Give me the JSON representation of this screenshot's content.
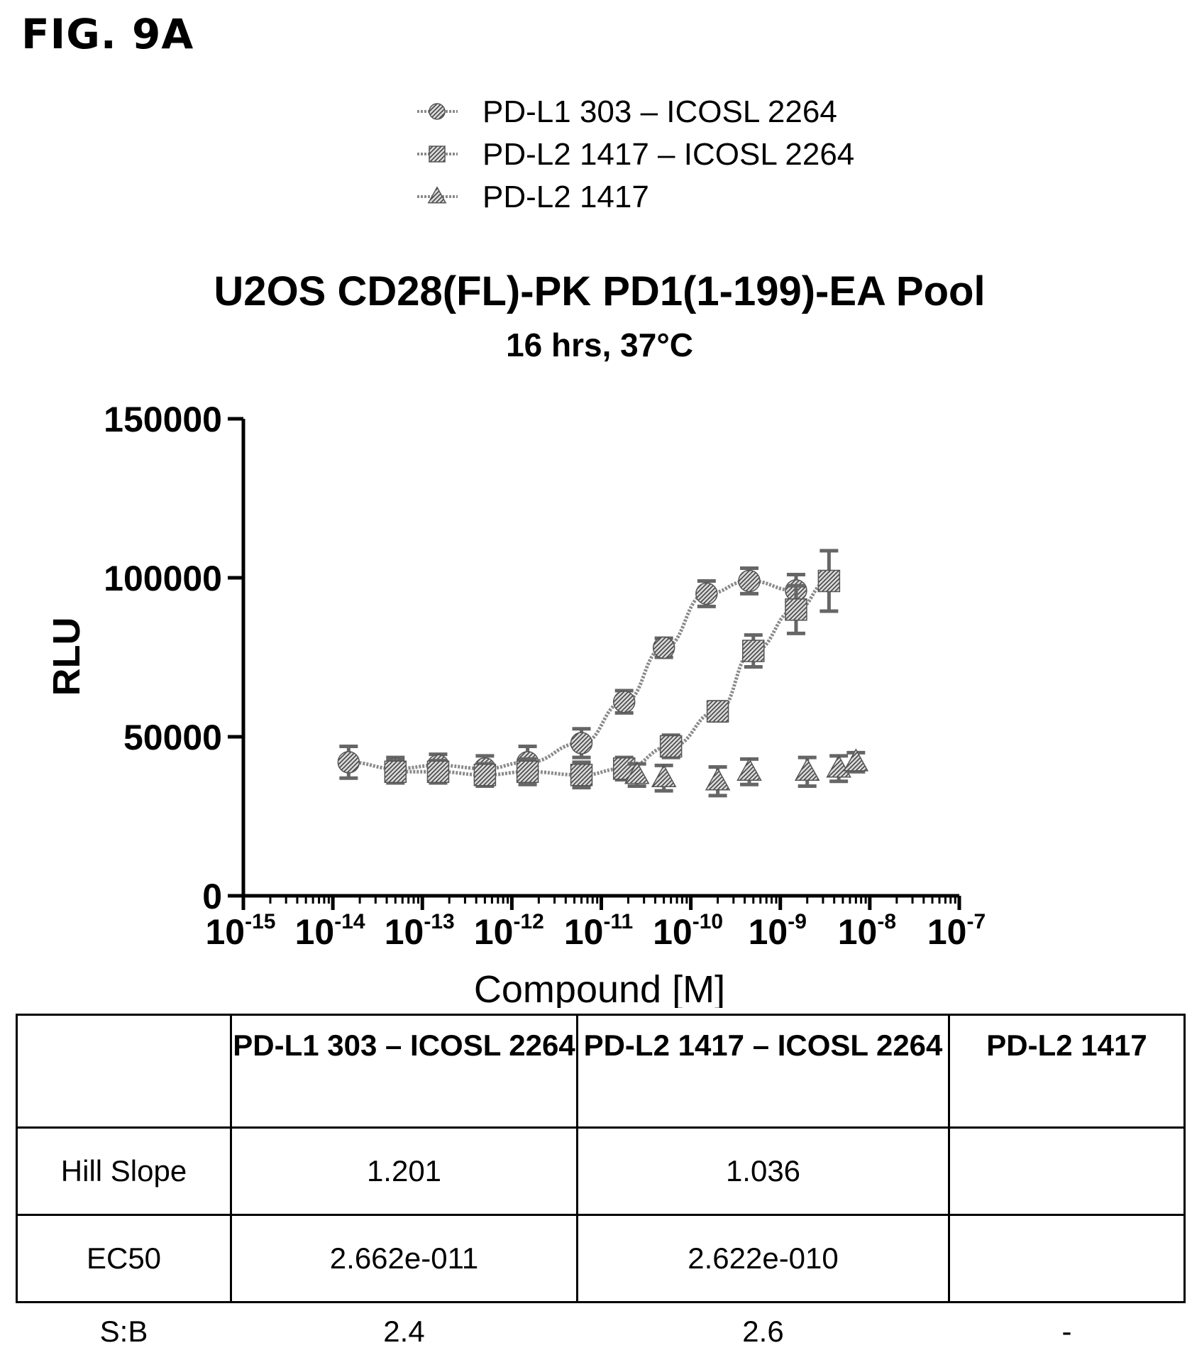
{
  "figure_label": "FIG. 9A",
  "chart_data": {
    "type": "scatter",
    "title": "U2OS CD28(FL)-PK PD1(1-199)-EA Pool",
    "subtitle": "16 hrs, 37°C",
    "xlabel": "Compound [M]",
    "ylabel": "RLU",
    "x_scale": "log",
    "xlim": [
      1e-15,
      1e-07
    ],
    "ylim": [
      0,
      150000
    ],
    "x_ticks": [
      {
        "base": "10",
        "exp": "-15"
      },
      {
        "base": "10",
        "exp": "-14"
      },
      {
        "base": "10",
        "exp": "-13"
      },
      {
        "base": "10",
        "exp": "-12"
      },
      {
        "base": "10",
        "exp": "-11"
      },
      {
        "base": "10",
        "exp": "-10"
      },
      {
        "base": "10",
        "exp": "-9"
      },
      {
        "base": "10",
        "exp": "-8"
      },
      {
        "base": "10",
        "exp": "-7"
      }
    ],
    "y_ticks": [
      "0",
      "50000",
      "100000",
      "150000"
    ],
    "legend_position": "top-center",
    "series": [
      {
        "name": "PD-L1 303 – ICOSL 2264",
        "marker": "circle",
        "fit_curve": true,
        "x": [
          1.5e-14,
          5e-14,
          1.5e-13,
          5e-13,
          1.5e-12,
          6e-12,
          1.8e-11,
          5e-11,
          1.5e-10,
          4.5e-10,
          1.5e-09
        ],
        "y": [
          42000,
          40000,
          41000,
          40000,
          42000,
          48000,
          61000,
          78000,
          95000,
          99000,
          96000
        ],
        "err": [
          5000,
          3500,
          3500,
          4000,
          5000,
          4500,
          3500,
          3000,
          4000,
          4000,
          5000
        ]
      },
      {
        "name": "PD-L2 1417 – ICOSL 2264",
        "marker": "square",
        "fit_curve": true,
        "x": [
          5e-14,
          1.5e-13,
          5e-13,
          1.5e-12,
          6e-12,
          1.8e-11,
          6e-11,
          2e-10,
          5e-10,
          1.5e-09,
          3.5e-09
        ],
        "y": [
          39000,
          39000,
          38000,
          39000,
          38000,
          40000,
          47000,
          58000,
          77000,
          90000,
          99000
        ],
        "err": [
          3500,
          3500,
          3500,
          4000,
          4000,
          3500,
          3500,
          3000,
          5000,
          7500,
          9500
        ]
      },
      {
        "name": "PD-L2 1417",
        "marker": "triangle",
        "fit_curve": false,
        "x": [
          2.5e-11,
          5e-11,
          2e-10,
          4.5e-10,
          2e-09,
          4.5e-09,
          7e-09
        ],
        "y": [
          38000,
          37000,
          36000,
          39000,
          39000,
          40000,
          42000
        ],
        "err": [
          3500,
          4000,
          4500,
          4000,
          4500,
          4000,
          3000
        ]
      }
    ]
  },
  "table": {
    "headers": [
      "",
      "PD-L1 303 – ICOSL 2264",
      "PD-L2 1417 – ICOSL 2264",
      "PD-L2 1417"
    ],
    "rows": [
      {
        "label": "Hill Slope",
        "values": [
          "1.201",
          "1.036",
          ""
        ]
      },
      {
        "label": "EC50",
        "values": [
          "2.662e-011",
          "2.622e-010",
          ""
        ]
      },
      {
        "label": "S:B",
        "values": [
          "2.4",
          "2.6",
          "-"
        ]
      }
    ]
  }
}
